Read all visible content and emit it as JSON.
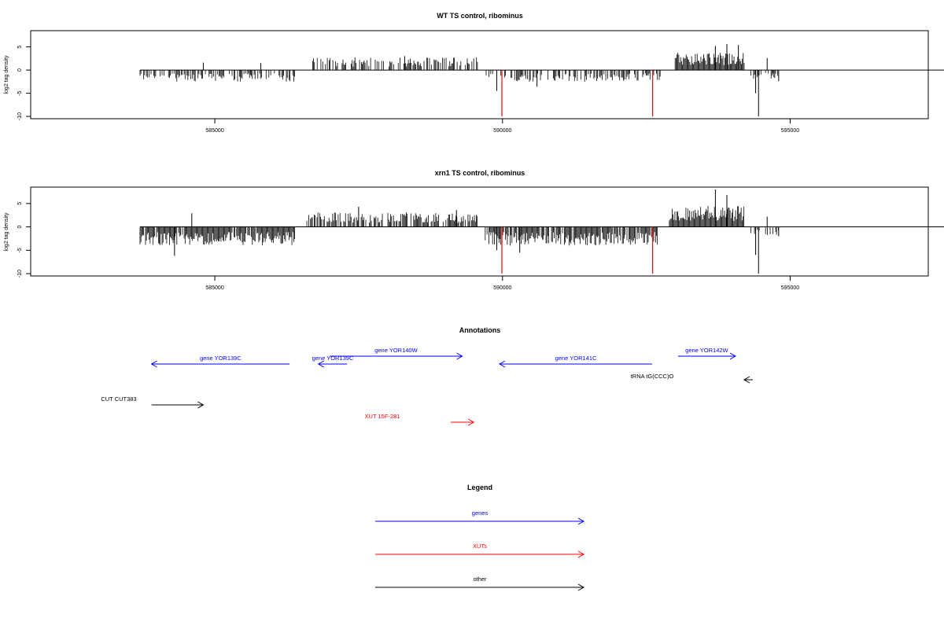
{
  "chart_data": [
    {
      "type": "bar",
      "title": "WT TS control, ribominus",
      "ylabel": "log2 tag density",
      "xlim": [
        581800,
        597400
      ],
      "ylim": [
        -10.5,
        8.5
      ],
      "yticks": [
        -10,
        -5,
        0,
        5
      ],
      "xticks": [
        585000,
        590000,
        595000
      ],
      "baseline_range": [
        583700,
        598700
      ],
      "series_color": "#000000",
      "highlight_color": "#ff0000",
      "segments": [
        {
          "from": 583700,
          "to": 586400,
          "amp": -2.0,
          "density": 0.6
        },
        {
          "from": 586700,
          "to": 589600,
          "amp": 2.2,
          "density": 0.55
        },
        {
          "from": 589700,
          "to": 592800,
          "amp": -2.0,
          "density": 0.55
        },
        {
          "from": 593000,
          "to": 594200,
          "amp": 3.0,
          "density": 1.0
        },
        {
          "from": 594300,
          "to": 594800,
          "amp": -1.5,
          "density": 0.4
        }
      ],
      "peaks": [
        [
          584800,
          1.6
        ],
        [
          585800,
          1.5
        ],
        [
          588300,
          3.0
        ],
        [
          589400,
          1.5
        ],
        [
          593900,
          5.6
        ],
        [
          593700,
          5.2
        ],
        [
          594100,
          5.4
        ],
        [
          594600,
          2.6
        ],
        [
          594400,
          -5.0
        ],
        [
          594450,
          -10.0
        ],
        [
          594800,
          -2.4
        ],
        [
          589900,
          -4.5
        ],
        [
          590600,
          -3.6
        ]
      ],
      "highlights": [
        [
          589990,
          -10
        ],
        [
          592610,
          -10
        ]
      ]
    },
    {
      "type": "bar",
      "title": "xrn1 TS control, ribominus",
      "ylabel": "log2 tag density",
      "xlim": [
        581800,
        597400
      ],
      "ylim": [
        -10.5,
        8.5
      ],
      "yticks": [
        -10,
        -5,
        0,
        5
      ],
      "xticks": [
        585000,
        590000,
        595000
      ],
      "baseline_range": [
        583700,
        598700
      ],
      "series_color": "#000000",
      "highlight_color": "#ff0000",
      "segments": [
        {
          "from": 583700,
          "to": 586400,
          "amp": -3.2,
          "density": 0.95
        },
        {
          "from": 586600,
          "to": 589600,
          "amp": 2.5,
          "density": 0.7
        },
        {
          "from": 589700,
          "to": 592700,
          "amp": -3.2,
          "density": 0.85
        },
        {
          "from": 592900,
          "to": 594200,
          "amp": 3.6,
          "density": 1.0
        },
        {
          "from": 594300,
          "to": 594800,
          "amp": -1.5,
          "density": 0.4
        }
      ],
      "peaks": [
        [
          584300,
          -6.2
        ],
        [
          584600,
          2.9
        ],
        [
          587500,
          4.3
        ],
        [
          589200,
          3.6
        ],
        [
          593700,
          8.0
        ],
        [
          593900,
          6.8
        ],
        [
          594400,
          -6.0
        ],
        [
          594450,
          -10.0
        ],
        [
          590300,
          -5.5
        ],
        [
          589900,
          -5.0
        ],
        [
          594600,
          2.2
        ],
        [
          594800,
          -2.0
        ]
      ],
      "highlights": [
        [
          589990,
          -10
        ],
        [
          592610,
          -10
        ]
      ]
    }
  ],
  "annotations": {
    "title": "Annotations",
    "features": [
      {
        "label": "gene YOR139C",
        "start": 586300,
        "end": 583900,
        "strand": "-",
        "color": "#0000ff",
        "row": 1
      },
      {
        "label": "gene YOR139C",
        "start": 587300,
        "end": 586800,
        "strand": "-",
        "color": "#0000ff",
        "row": 1
      },
      {
        "label": "gene YOR140W",
        "start": 587000,
        "end": 589300,
        "strand": "+",
        "color": "#0000ff",
        "row": 0
      },
      {
        "label": "gene YOR141C",
        "start": 592600,
        "end": 589950,
        "strand": "-",
        "color": "#0000ff",
        "row": 1
      },
      {
        "label": "gene YOR142W",
        "start": 593050,
        "end": 594050,
        "strand": "+",
        "color": "#0000ff",
        "row": 0
      },
      {
        "label": "tRNA tG(CCC)O",
        "start": 594350,
        "end": 594200,
        "strand": "-",
        "color": "#000000",
        "row": 2
      },
      {
        "label": "CUT CUT383",
        "start": 583900,
        "end": 584800,
        "strand": "+",
        "color": "#000000",
        "row": 3
      },
      {
        "label": "XUT 15F-281",
        "start": 589100,
        "end": 589500,
        "strand": "+",
        "color": "#ff0000",
        "row": 4
      }
    ]
  },
  "legend": {
    "title": "Legend",
    "items": [
      {
        "label": "genes",
        "color": "#0000ff"
      },
      {
        "label": "XUTs",
        "color": "#ff0000"
      },
      {
        "label": "other",
        "color": "#000000"
      }
    ]
  }
}
